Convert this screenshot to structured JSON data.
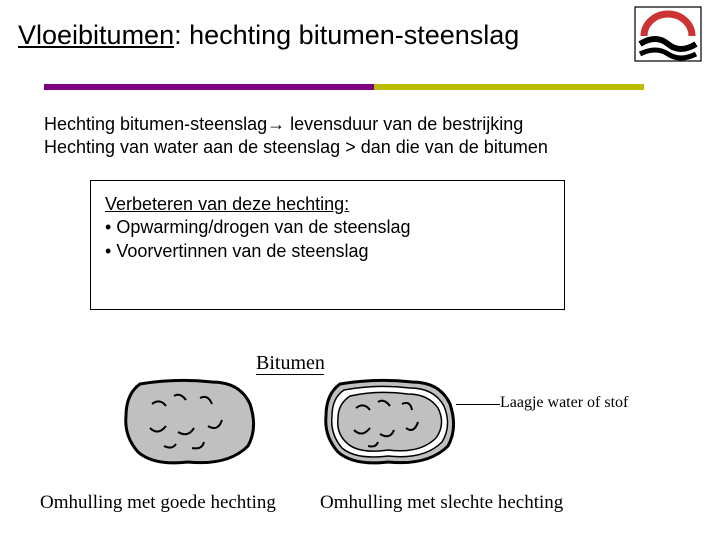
{
  "title": {
    "underlined": "Vloeibitumen",
    "rest": ": hechting bitumen-steenslag"
  },
  "divider": {
    "left_color": "#7f007f",
    "right_color": "#bcbc00",
    "left_width_pct": 55
  },
  "body": {
    "line1": "Hechting bitumen-steenslag→ levensduur van de bestrijking",
    "line2": "Hechting van water aan de steenslag > dan die van de bitumen"
  },
  "box": {
    "heading": "Verbeteren van deze hechting:",
    "bullet1": "Opwarming/drogen van de steenslag",
    "bullet2": "Voorvertinnen van de steenslag"
  },
  "diagram": {
    "bitumen_label": "Bitumen",
    "water_label": "Laagje water of stof",
    "caption_good": "Omhulling met goede hechting",
    "caption_bad": "Omhulling met slechte hechting",
    "stone_fill": "#c0c0c0",
    "stone_stroke": "#000000",
    "inner_gap_color": "#ffffff"
  },
  "logo": {
    "arc_color": "#cc3333",
    "wave_color": "#000000",
    "border_color": "#000000"
  }
}
